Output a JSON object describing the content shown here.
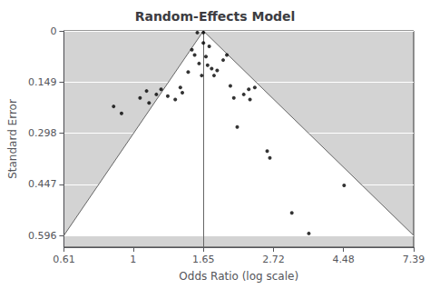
{
  "chart_data": {
    "type": "scatter",
    "title": "Random-Effects Model",
    "xlabel": "Odds Ratio (log scale)",
    "ylabel": "Standard Error",
    "log": "x",
    "x": [
      0.87,
      0.92,
      1.05,
      1.1,
      1.12,
      1.18,
      1.22,
      1.28,
      1.35,
      1.4,
      1.42,
      1.48,
      1.52,
      1.55,
      1.58,
      1.6,
      1.63,
      1.65,
      1.65,
      1.68,
      1.7,
      1.72,
      1.75,
      1.78,
      1.82,
      1.9,
      1.95,
      2.0,
      2.05,
      2.1,
      2.2,
      2.28,
      2.3,
      2.38,
      2.6,
      2.65,
      3.1,
      3.5,
      4.5
    ],
    "values": [
      0.22,
      0.24,
      0.195,
      0.175,
      0.21,
      0.185,
      0.17,
      0.19,
      0.2,
      0.165,
      0.18,
      0.12,
      0.055,
      0.07,
      0.005,
      0.095,
      0.13,
      0.005,
      0.035,
      0.075,
      0.1,
      0.045,
      0.11,
      0.13,
      0.115,
      0.085,
      0.07,
      0.16,
      0.195,
      0.28,
      0.185,
      0.17,
      0.2,
      0.165,
      0.35,
      0.37,
      0.53,
      0.59,
      0.45
    ],
    "color": "#000000",
    "background": "#d3d3d3",
    "funnel": {
      "center": 1.65,
      "left": 0.61,
      "right": 7.39,
      "depth": 0.596,
      "color": "#ffffff",
      "line_color": "#666666"
    },
    "xlim": [
      0.61,
      7.39
    ],
    "xticks": [
      0.61,
      1,
      1.65,
      2.72,
      4.48,
      7.39
    ],
    "ylim": [
      0.63,
      0
    ],
    "yticks": [
      0,
      0.149,
      0.298,
      0.447,
      0.596
    ],
    "grid": "y"
  }
}
